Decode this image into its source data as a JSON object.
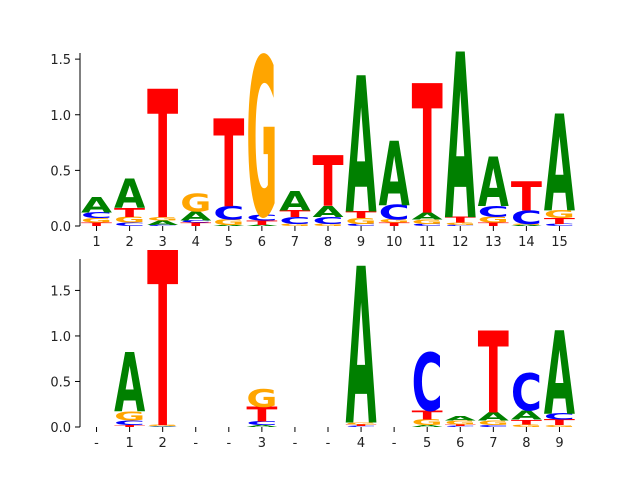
{
  "colors": {
    "A": "#008000",
    "C": "#0000ff",
    "G": "#ffa500",
    "T": "#ff0000"
  },
  "chart_data": [
    {
      "type": "sequence-logo",
      "ylim": [
        0,
        1.6
      ],
      "yticks": [
        "0.0",
        "0.5",
        "1.0",
        "1.5"
      ],
      "ytick_values": [
        0,
        0.5,
        1.0,
        1.5
      ],
      "xtick_labels": [
        "1",
        "2",
        "3",
        "4",
        "5",
        "6",
        "7",
        "8",
        "9",
        "10",
        "11",
        "12",
        "13",
        "14",
        "15"
      ],
      "positions": [
        [
          [
            "T",
            0.03
          ],
          [
            "G",
            0.04
          ],
          [
            "C",
            0.05
          ],
          [
            "A",
            0.14
          ]
        ],
        [
          [
            "C",
            0.03
          ],
          [
            "G",
            0.05
          ],
          [
            "T",
            0.08
          ],
          [
            "A",
            0.26
          ]
        ],
        [
          [
            "C",
            0.01
          ],
          [
            "A",
            0.04
          ],
          [
            "G",
            0.03
          ],
          [
            "T",
            1.14
          ]
        ],
        [
          [
            "T",
            0.03
          ],
          [
            "C",
            0.02
          ],
          [
            "A",
            0.08
          ],
          [
            "G",
            0.16
          ]
        ],
        [
          [
            "A",
            0.01
          ],
          [
            "G",
            0.05
          ],
          [
            "C",
            0.12
          ],
          [
            "T",
            0.78
          ]
        ],
        [
          [
            "A",
            0.01
          ],
          [
            "T",
            0.04
          ],
          [
            "C",
            0.05
          ],
          [
            "G",
            1.41
          ]
        ],
        [
          [
            "G",
            0.02
          ],
          [
            "C",
            0.06
          ],
          [
            "T",
            0.06
          ],
          [
            "A",
            0.17
          ]
        ],
        [
          [
            "G",
            0.02
          ],
          [
            "C",
            0.06
          ],
          [
            "A",
            0.1
          ],
          [
            "T",
            0.45
          ]
        ],
        [
          [
            "C",
            0.02
          ],
          [
            "G",
            0.05
          ],
          [
            "T",
            0.06
          ],
          [
            "A",
            1.21
          ]
        ],
        [
          [
            "T",
            0.03
          ],
          [
            "G",
            0.03
          ],
          [
            "C",
            0.13
          ],
          [
            "A",
            0.57
          ]
        ],
        [
          [
            "C",
            0.02
          ],
          [
            "G",
            0.04
          ],
          [
            "A",
            0.06
          ],
          [
            "T",
            1.15
          ]
        ],
        [
          [
            "C",
            0.01
          ],
          [
            "G",
            0.02
          ],
          [
            "T",
            0.05
          ],
          [
            "A",
            1.47
          ]
        ],
        [
          [
            "T",
            0.03
          ],
          [
            "G",
            0.05
          ],
          [
            "C",
            0.1
          ],
          [
            "A",
            0.44
          ]
        ],
        [
          [
            "A",
            0.01
          ],
          [
            "G",
            0.01
          ],
          [
            "C",
            0.12
          ],
          [
            "T",
            0.26
          ]
        ],
        [
          [
            "C",
            0.02
          ],
          [
            "T",
            0.05
          ],
          [
            "G",
            0.07
          ],
          [
            "A",
            0.86
          ]
        ]
      ]
    },
    {
      "type": "sequence-logo",
      "ylim": [
        0,
        1.9
      ],
      "yticks": [
        "0.0",
        "0.5",
        "1.0",
        "1.5"
      ],
      "ytick_values": [
        0,
        0.5,
        1.0,
        1.5
      ],
      "xtick_labels": [
        "-",
        "1",
        "2",
        "-",
        "-",
        "3",
        "-",
        "-",
        "4",
        "-",
        "5",
        "6",
        "7",
        "8",
        "9"
      ],
      "positions": [
        [],
        [
          [
            "T",
            0.02
          ],
          [
            "C",
            0.05
          ],
          [
            "G",
            0.1
          ],
          [
            "A",
            0.64
          ]
        ],
        [
          [
            "A",
            0.005
          ],
          [
            "C",
            0.005
          ],
          [
            "G",
            0.01
          ],
          [
            "T",
            1.9
          ]
        ],
        [],
        [],
        [
          [
            "A",
            0.02
          ],
          [
            "C",
            0.04
          ],
          [
            "T",
            0.16
          ],
          [
            "G",
            0.2
          ]
        ],
        [],
        [],
        [
          [
            "C",
            0.01
          ],
          [
            "T",
            0.02
          ],
          [
            "G",
            0.02
          ],
          [
            "A",
            1.7
          ]
        ],
        [],
        [
          [
            "A",
            0.02
          ],
          [
            "G",
            0.06
          ],
          [
            "T",
            0.1
          ],
          [
            "C",
            0.63
          ]
        ],
        [
          [
            "C",
            0.01
          ],
          [
            "T",
            0.02
          ],
          [
            "G",
            0.04
          ],
          [
            "A",
            0.05
          ]
        ],
        [
          [
            "C",
            0.02
          ],
          [
            "G",
            0.05
          ],
          [
            "A",
            0.09
          ],
          [
            "T",
            0.89
          ]
        ],
        [
          [
            "G",
            0.03
          ],
          [
            "T",
            0.05
          ],
          [
            "A",
            0.1
          ],
          [
            "C",
            0.4
          ]
        ],
        [
          [
            "G",
            0.02
          ],
          [
            "T",
            0.06
          ],
          [
            "C",
            0.07
          ],
          [
            "A",
            0.9
          ]
        ]
      ]
    }
  ]
}
